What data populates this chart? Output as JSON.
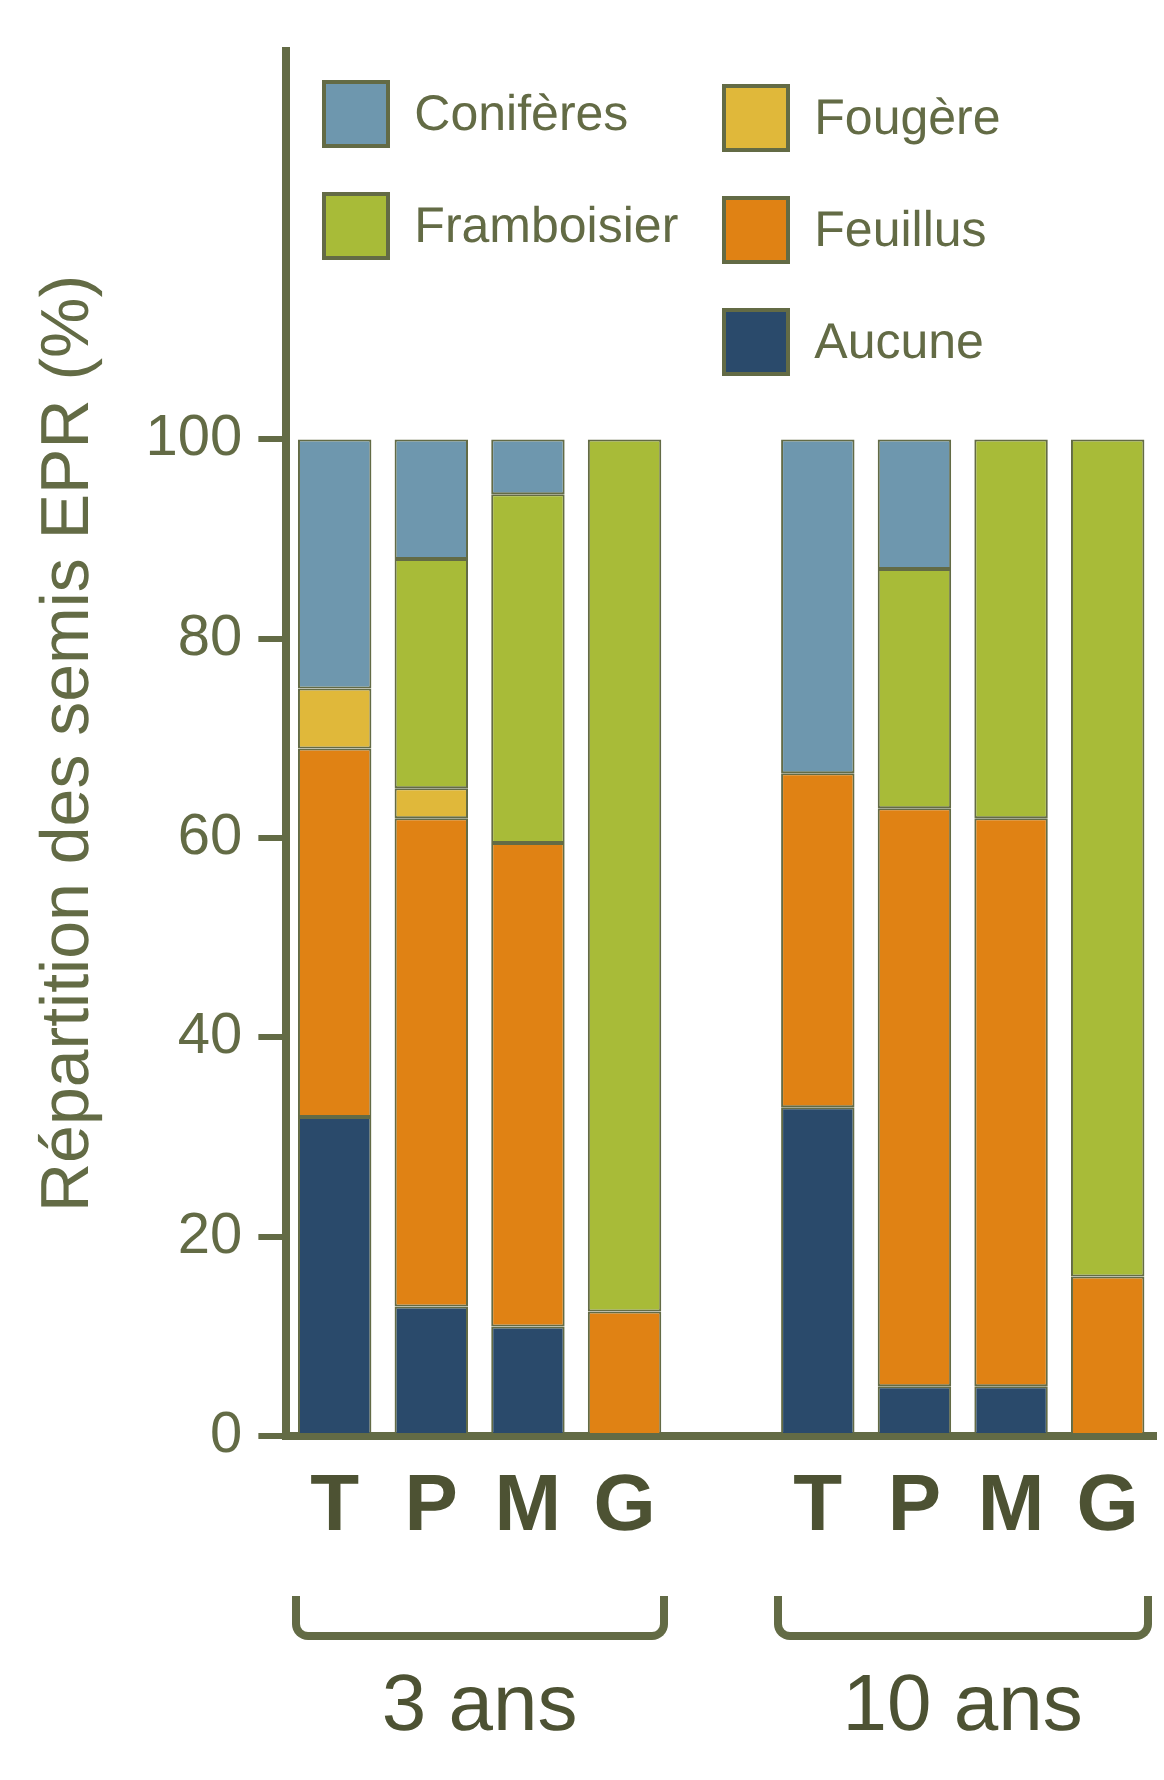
{
  "chart_data": {
    "type": "bar",
    "stacked": true,
    "ylabel": "Répartition des semis EPR (%)",
    "categories": [
      "T",
      "P",
      "M",
      "G",
      null,
      "T",
      "P",
      "M",
      "G"
    ],
    "series": [
      {
        "name": "Aucune",
        "color": "#2a4a6b",
        "values": [
          32,
          13,
          11,
          null,
          null,
          33,
          5,
          5,
          null
        ]
      },
      {
        "name": "Feuillus",
        "color": "#e08214",
        "values": [
          37,
          49,
          48.5,
          12.5,
          null,
          33.5,
          58,
          57,
          16
        ]
      },
      {
        "name": "Fougère",
        "color": "#e0b83a",
        "values": [
          6,
          3,
          null,
          null,
          null,
          null,
          null,
          null,
          null
        ]
      },
      {
        "name": "Framboisier",
        "color": "#a8bb38",
        "values": [
          null,
          23,
          35,
          87.5,
          null,
          null,
          24,
          38,
          84
        ]
      },
      {
        "name": "Conifères",
        "color": "#6e97ae",
        "values": [
          25,
          12,
          5.5,
          null,
          null,
          33.5,
          13,
          null,
          null
        ]
      }
    ],
    "ylim": [
      0,
      139
    ],
    "yticks": [
      0,
      20,
      40,
      60,
      80,
      100
    ],
    "grid": false,
    "legend": "top",
    "annotations": [
      "3 ans",
      "10 ans"
    ]
  }
}
